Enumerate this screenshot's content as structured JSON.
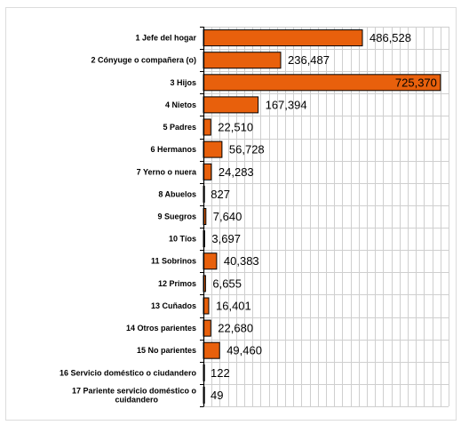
{
  "chart_data": {
    "type": "bar",
    "orientation": "horizontal",
    "title": "",
    "xlabel": "",
    "ylabel": "",
    "xlim": [
      0,
      750000
    ],
    "grid": true,
    "legend": "none",
    "bar_color": "#E8600C",
    "bar_edge_color": "#000000",
    "categories": [
      [
        "1  Jefe del hogar"
      ],
      [
        "2  Cónyuge o compañera (o)"
      ],
      [
        "3  Hijos"
      ],
      [
        "4  Nietos"
      ],
      [
        "5  Padres"
      ],
      [
        "6  Hermanos"
      ],
      [
        "7  Yerno o nuera"
      ],
      [
        "8  Abuelos"
      ],
      [
        "9  Suegros"
      ],
      [
        "10  Tíos"
      ],
      [
        "11  Sobrinos"
      ],
      [
        "12  Primos"
      ],
      [
        "13  Cuñados"
      ],
      [
        "14  Otros parientes"
      ],
      [
        "15  No parientes"
      ],
      [
        "16  Servicio doméstico o ciudandero"
      ],
      [
        "17 Pariente servicio doméstico o",
        "cuidandero"
      ]
    ],
    "values": [
      486528,
      236487,
      725370,
      167394,
      22510,
      56728,
      24283,
      827,
      7640,
      3697,
      40383,
      6655,
      16401,
      22680,
      49460,
      122,
      49
    ],
    "value_labels": [
      "486,528",
      "236,487",
      "725,370",
      "167,394",
      "22,510",
      "56,728",
      "24,283",
      "827",
      "7,640",
      "3,697",
      "40,383",
      "6,655",
      "16,401",
      "22,680",
      "49,460",
      "122",
      "49"
    ]
  }
}
